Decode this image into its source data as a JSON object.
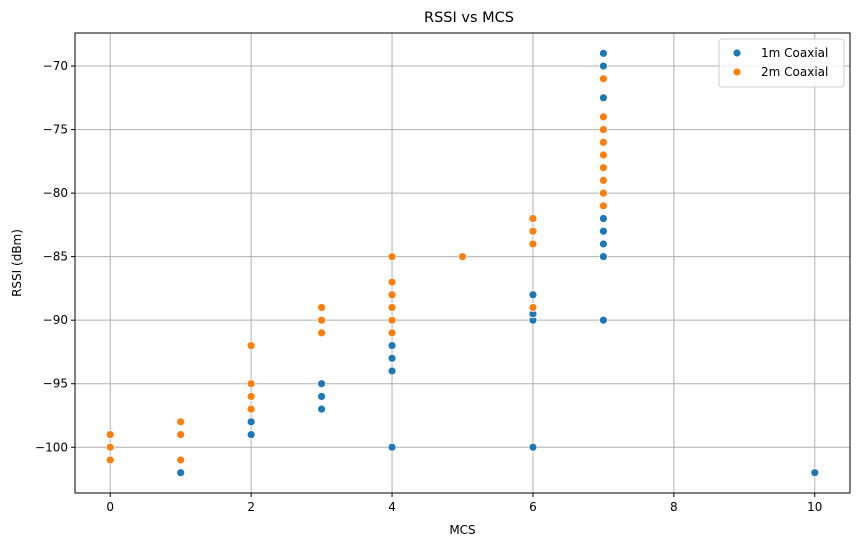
{
  "chart_data": {
    "type": "scatter",
    "title": "RSSI vs MCS",
    "xlabel": "MCS",
    "ylabel": "RSSI (dBm)",
    "xlim": [
      -0.5,
      10.5
    ],
    "ylim": [
      -103.6,
      -67.4
    ],
    "xticks": [
      0,
      2,
      4,
      6,
      8,
      10
    ],
    "yticks": [
      -100,
      -95,
      -90,
      -85,
      -80,
      -75,
      -70
    ],
    "ytick_labels": [
      "−100",
      "−95",
      "−90",
      "−85",
      "−80",
      "−75",
      "−70"
    ],
    "grid": true,
    "legend_position": "top-right",
    "series": [
      {
        "name": "1m Coaxial",
        "color": "#1f77b4",
        "points": [
          [
            1,
            -102
          ],
          [
            2,
            -99
          ],
          [
            2,
            -98
          ],
          [
            3,
            -97
          ],
          [
            3,
            -96
          ],
          [
            3,
            -95
          ],
          [
            4,
            -100
          ],
          [
            4,
            -94
          ],
          [
            4,
            -93
          ],
          [
            4,
            -92
          ],
          [
            6,
            -100
          ],
          [
            6,
            -90
          ],
          [
            6,
            -89.5
          ],
          [
            6,
            -88
          ],
          [
            7,
            -90
          ],
          [
            7,
            -85
          ],
          [
            7,
            -84
          ],
          [
            7,
            -83
          ],
          [
            7,
            -82
          ],
          [
            7,
            -72.5
          ],
          [
            7,
            -70
          ],
          [
            7,
            -69
          ],
          [
            10,
            -102
          ]
        ]
      },
      {
        "name": "2m Coaxial",
        "color": "#ff7f0e",
        "points": [
          [
            0,
            -101
          ],
          [
            0,
            -100
          ],
          [
            0,
            -99
          ],
          [
            1,
            -101
          ],
          [
            1,
            -99
          ],
          [
            1,
            -98
          ],
          [
            2,
            -97
          ],
          [
            2,
            -96
          ],
          [
            2,
            -95
          ],
          [
            2,
            -92
          ],
          [
            3,
            -91
          ],
          [
            3,
            -90
          ],
          [
            3,
            -89
          ],
          [
            4,
            -91
          ],
          [
            4,
            -90
          ],
          [
            4,
            -89
          ],
          [
            4,
            -88
          ],
          [
            4,
            -87
          ],
          [
            4,
            -85
          ],
          [
            5,
            -85
          ],
          [
            6,
            -89
          ],
          [
            6,
            -84
          ],
          [
            6,
            -83
          ],
          [
            6,
            -82
          ],
          [
            7,
            -81
          ],
          [
            7,
            -80
          ],
          [
            7,
            -79
          ],
          [
            7,
            -78
          ],
          [
            7,
            -77
          ],
          [
            7,
            -76
          ],
          [
            7,
            -75
          ],
          [
            7,
            -74
          ],
          [
            7,
            -71
          ]
        ]
      }
    ]
  }
}
